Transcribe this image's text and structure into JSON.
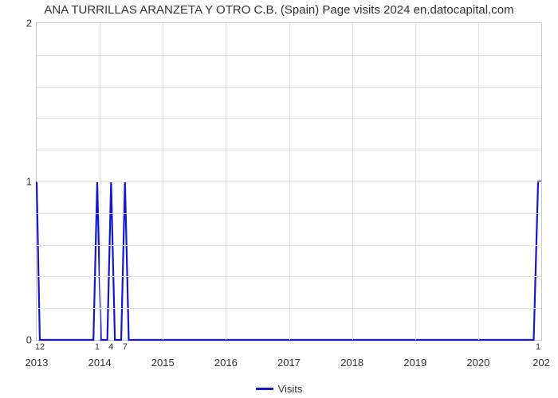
{
  "chart": {
    "type": "line",
    "title": "ANA TURRILLAS ARANZETA Y OTRO C.B. (Spain) Page visits 2024 en.datocapital.com",
    "title_fontsize": 15,
    "title_color": "#333333",
    "background_color": "#ffffff",
    "plot_border_color": "#c8c8c8",
    "grid_color": "#e4e4e4",
    "x": {
      "min": 2013,
      "max": 2021,
      "major_ticks": [
        2013,
        2014,
        2015,
        2016,
        2017,
        2018,
        2019,
        2020
      ],
      "end_label_frac": "202"
    },
    "y": {
      "min": 0,
      "max": 2,
      "major_ticks": [
        0,
        1,
        2
      ],
      "minor_divisions": 5,
      "label_fontsize": 13,
      "label_color": "#333333"
    },
    "minor_labels_below": [
      {
        "x": 2013.05,
        "text": "12"
      },
      {
        "x": 2013.96,
        "text": "1"
      },
      {
        "x": 2014.18,
        "text": "4"
      },
      {
        "x": 2014.4,
        "text": "7"
      },
      {
        "x": 2020.95,
        "text": "1"
      }
    ],
    "series": {
      "name": "Visits",
      "color": "#1618ce",
      "line_width": 2.2,
      "points": [
        {
          "x": 2013.0,
          "y": 1
        },
        {
          "x": 2013.05,
          "y": 0
        },
        {
          "x": 2013.9,
          "y": 0
        },
        {
          "x": 2013.96,
          "y": 1
        },
        {
          "x": 2014.02,
          "y": 0
        },
        {
          "x": 2014.12,
          "y": 0
        },
        {
          "x": 2014.18,
          "y": 1
        },
        {
          "x": 2014.24,
          "y": 0
        },
        {
          "x": 2014.34,
          "y": 0
        },
        {
          "x": 2014.4,
          "y": 1
        },
        {
          "x": 2014.46,
          "y": 0
        },
        {
          "x": 2020.88,
          "y": 0
        },
        {
          "x": 2020.95,
          "y": 1
        },
        {
          "x": 2021.0,
          "y": 1
        }
      ]
    },
    "legend": {
      "label": "Visits",
      "swatch_color": "#1618ce",
      "fontsize": 13
    }
  }
}
